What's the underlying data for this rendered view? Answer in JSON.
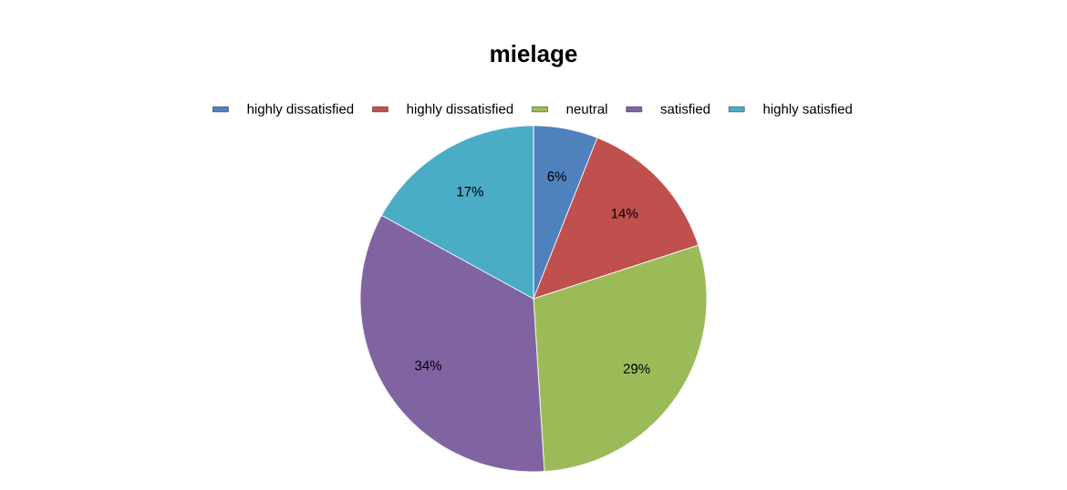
{
  "chart_data": {
    "type": "pie",
    "title": "mielage",
    "categories": [
      "highly dissatisfied",
      "highly dissatisfied",
      "neutral",
      "satisfied",
      "highly satisfied"
    ],
    "values": [
      6,
      14,
      29,
      34,
      17
    ],
    "value_labels": [
      "6%",
      "14%",
      "29%",
      "34%",
      "17%"
    ],
    "colors": [
      "#4f81bd",
      "#c0504d",
      "#9bbb59",
      "#8064a2",
      "#4bacc6"
    ],
    "legend": "top"
  }
}
